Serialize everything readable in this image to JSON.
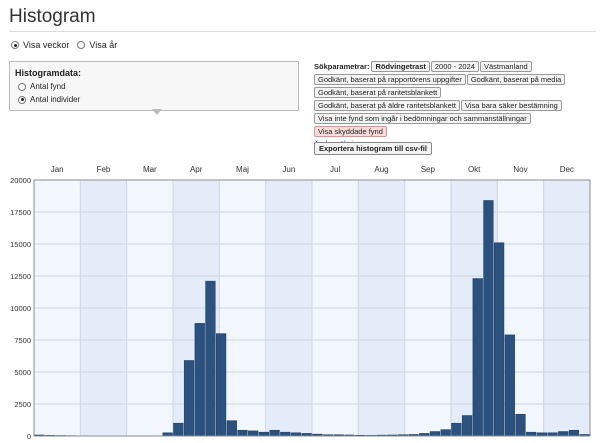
{
  "page": {
    "title": "Histogram"
  },
  "view_toggle": {
    "weeks_label": "Visa veckor",
    "year_label": "Visa år",
    "selected": "weeks"
  },
  "histogram_data": {
    "heading": "Histogramdata:",
    "options": [
      "Antal fynd",
      "Antal individer"
    ],
    "selected": "Antal individer"
  },
  "search_params": {
    "label": "Sökparametrar:",
    "tags": [
      {
        "text": "Rödvingetrast",
        "bold": true
      },
      {
        "text": "2000 - 2024"
      },
      {
        "text": "Västmanland"
      },
      {
        "text": "Godkänt, baserat på rapportörens uppgifter"
      },
      {
        "text": "Godkänt, baserat på media"
      },
      {
        "text": "Godkänt, baserat på raritetsblankett"
      },
      {
        "text": "Godkänt, baserat på äldre raritetsblankett"
      },
      {
        "text": "Visa bara säker bestämning"
      },
      {
        "text": "Visa inte fynd som ingår i bedömningar och sammanställningar"
      },
      {
        "text": "Visa skyddade fynd",
        "highlight": true
      }
    ],
    "change_link": "Ändra sökningen"
  },
  "export_button": "Exportera histogram till csv-fil",
  "colors": {
    "bar": "#2b527f",
    "bar_edge": "#1d3a5e",
    "band_light": "#f2f6fd",
    "band_dark": "#e3ecf8",
    "grid": "#cfd6e0"
  },
  "chart_data": {
    "type": "bar",
    "months": [
      "Jan",
      "Feb",
      "Mar",
      "Apr",
      "Maj",
      "Jun",
      "Jul",
      "Aug",
      "Sep",
      "Okt",
      "Nov",
      "Dec"
    ],
    "y_ticks": [
      0,
      2500,
      5000,
      7500,
      10000,
      12500,
      15000,
      17500,
      20000
    ],
    "ylim": [
      0,
      20000
    ],
    "grid": true,
    "values": [
      80,
      50,
      40,
      30,
      20,
      15,
      10,
      10,
      15,
      10,
      10,
      20,
      250,
      1000,
      5900,
      8800,
      12100,
      8000,
      1200,
      450,
      400,
      300,
      450,
      300,
      250,
      200,
      150,
      100,
      100,
      80,
      60,
      50,
      70,
      80,
      100,
      120,
      200,
      350,
      500,
      1000,
      1600,
      12300,
      18400,
      15100,
      7900,
      1700,
      300,
      250,
      250,
      350,
      450,
      120
    ]
  }
}
